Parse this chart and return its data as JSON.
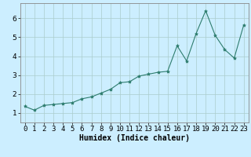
{
  "x": [
    0,
    1,
    2,
    3,
    4,
    5,
    6,
    7,
    8,
    9,
    10,
    11,
    12,
    13,
    14,
    15,
    16,
    17,
    18,
    19,
    20,
    21,
    22,
    23
  ],
  "y": [
    1.35,
    1.15,
    1.4,
    1.45,
    1.5,
    1.55,
    1.75,
    1.85,
    2.05,
    2.25,
    2.6,
    2.65,
    2.95,
    3.05,
    3.15,
    3.2,
    4.55,
    3.75,
    5.2,
    6.4,
    5.1,
    4.35,
    3.9,
    5.65
  ],
  "line_color": "#2e7d6e",
  "marker": "*",
  "marker_size": 3,
  "background_color": "#cceeff",
  "grid_color": "#aacccc",
  "xlabel": "Humidex (Indice chaleur)",
  "xlim": [
    -0.5,
    23.5
  ],
  "ylim": [
    0.5,
    6.8
  ],
  "yticks": [
    1,
    2,
    3,
    4,
    5,
    6
  ],
  "xticks": [
    0,
    1,
    2,
    3,
    4,
    5,
    6,
    7,
    8,
    9,
    10,
    11,
    12,
    13,
    14,
    15,
    16,
    17,
    18,
    19,
    20,
    21,
    22,
    23
  ],
  "xlabel_fontsize": 7,
  "tick_fontsize": 6.5
}
